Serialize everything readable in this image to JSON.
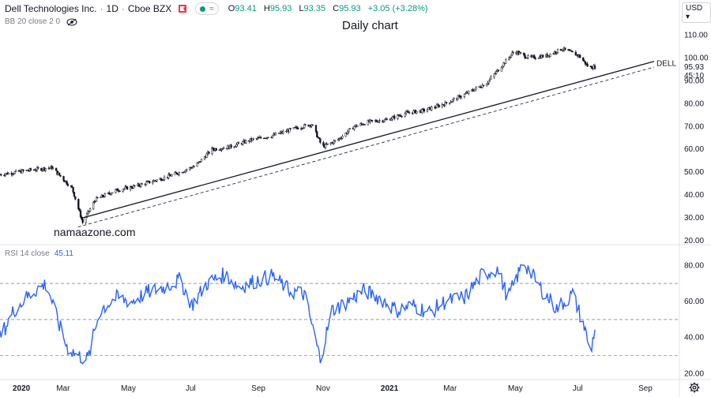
{
  "header": {
    "symbol": "Dell Technologies Inc.",
    "interval": "1D",
    "exchange": "Cboe BZX",
    "pill_symbol": "≈",
    "ohlc": [
      {
        "k": "O",
        "v": "93.41"
      },
      {
        "k": "H",
        "v": "95.93"
      },
      {
        "k": "L",
        "v": "93.35"
      },
      {
        "k": "C",
        "v": "95.93"
      }
    ],
    "change": "+3.05 (+3.28%)",
    "bb_label": "BB 20 close 2 0"
  },
  "chart_title": "Daily chart",
  "watermark": "namaazone.com",
  "currency": "USD",
  "colors": {
    "up": "#089981",
    "down": "#f23645",
    "rsi": "#2962ff",
    "candle": "#131722",
    "grid": "#f0f3fa"
  },
  "icons": {
    "flag": "flag-icon",
    "eye": "eye-off-icon",
    "settings": "gear-icon",
    "currency": "chevron-down-icon"
  },
  "chart_data": [
    {
      "type": "line",
      "name": "price",
      "ylim": [
        20,
        115
      ],
      "y_ticks": [
        "20.00",
        "30.00",
        "40.00",
        "50.00",
        "60.00",
        "70.00",
        "80.00",
        "90.00",
        "100.00",
        "110.00"
      ],
      "x_labels": [
        "2020",
        "Mar",
        "May",
        "Jul",
        "Sep",
        "Nov",
        "2021",
        "Mar",
        "May",
        "Jul",
        "Sep"
      ],
      "last_price_label": "95.93",
      "countdown_label": "45:10",
      "trendline_label": "DELL",
      "series": [
        {
          "x": [
            "2020-01-02",
            "2020-02-01",
            "2020-02-20",
            "2020-03-10",
            "2020-03-20",
            "2020-04-01",
            "2020-04-20",
            "2020-05-10",
            "2020-06-01",
            "2020-06-20",
            "2020-07-05",
            "2020-07-20",
            "2020-08-05",
            "2020-08-25",
            "2020-09-15",
            "2020-10-05",
            "2020-10-22",
            "2020-11-01",
            "2020-11-15",
            "2020-12-01",
            "2020-12-15",
            "2021-01-01",
            "2021-01-20",
            "2021-02-05",
            "2021-02-25",
            "2021-03-15",
            "2021-04-05",
            "2021-04-20",
            "2021-05-01",
            "2021-05-15",
            "2021-06-01",
            "2021-06-15",
            "2021-07-01",
            "2021-07-10",
            "2021-07-16"
          ],
          "values": [
            49,
            51,
            52,
            43,
            28,
            38,
            42,
            44,
            47,
            50,
            53,
            60,
            61,
            64,
            66,
            69,
            71,
            61,
            64,
            70,
            72,
            73,
            76,
            77,
            80,
            84,
            89,
            97,
            103,
            100,
            101,
            104,
            101,
            96,
            96
          ]
        }
      ]
    },
    {
      "type": "line",
      "name": "RSI 14 close",
      "value_label": "45.11",
      "ylim": [
        18,
        88
      ],
      "y_ticks": [
        "20.00",
        "40.00",
        "60.00",
        "80.00"
      ],
      "bands": [
        30,
        50,
        70
      ],
      "series": [
        {
          "x": [
            "2020-01-02",
            "2020-01-15",
            "2020-02-01",
            "2020-02-15",
            "2020-02-25",
            "2020-03-05",
            "2020-03-15",
            "2020-03-25",
            "2020-04-05",
            "2020-04-20",
            "2020-05-05",
            "2020-05-20",
            "2020-06-05",
            "2020-06-20",
            "2020-07-01",
            "2020-07-15",
            "2020-08-01",
            "2020-08-15",
            "2020-09-01",
            "2020-09-15",
            "2020-10-01",
            "2020-10-15",
            "2020-10-30",
            "2020-11-10",
            "2020-11-25",
            "2020-12-10",
            "2020-12-25",
            "2021-01-10",
            "2021-01-25",
            "2021-02-10",
            "2021-02-25",
            "2021-03-15",
            "2021-04-01",
            "2021-04-15",
            "2021-04-25",
            "2021-05-10",
            "2021-05-25",
            "2021-06-10",
            "2021-06-25",
            "2021-07-05",
            "2021-07-12",
            "2021-07-16"
          ],
          "values": [
            40,
            55,
            65,
            70,
            50,
            35,
            30,
            28,
            55,
            62,
            60,
            65,
            68,
            72,
            58,
            70,
            75,
            68,
            72,
            74,
            66,
            64,
            28,
            55,
            60,
            66,
            62,
            55,
            58,
            54,
            60,
            62,
            75,
            78,
            62,
            82,
            68,
            56,
            64,
            48,
            32,
            45
          ]
        }
      ]
    }
  ]
}
